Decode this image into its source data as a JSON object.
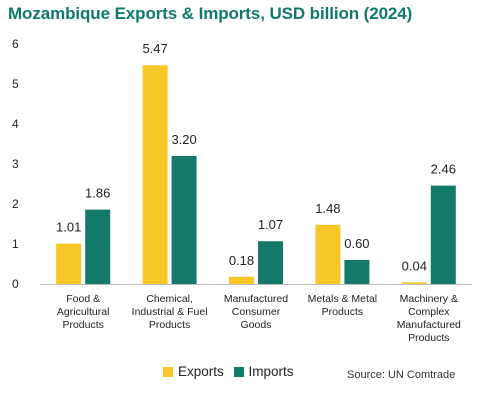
{
  "title": "Mozambique Exports & Imports, USD billion (2024)",
  "source": "Source: UN Comtrade",
  "chart_data": {
    "type": "bar",
    "categories": [
      [
        "Food &",
        "Agricultural",
        "Products"
      ],
      [
        "Chemical,",
        "Industrial & Fuel",
        "Products"
      ],
      [
        "Manufactured",
        "Consumer",
        "Goods"
      ],
      [
        "Metals & Metal",
        "Products"
      ],
      [
        "Machinery &",
        "Complex",
        "Manufactured",
        "Products"
      ]
    ],
    "series": [
      {
        "name": "Exports",
        "color": "#f7c728",
        "values": [
          1.01,
          5.47,
          0.18,
          1.48,
          0.04
        ]
      },
      {
        "name": "Imports",
        "color": "#137a6a",
        "values": [
          1.86,
          3.2,
          1.07,
          0.6,
          2.46
        ]
      }
    ],
    "ylim": [
      0,
      6
    ],
    "yticks": [
      0,
      1,
      2,
      3,
      4,
      5,
      6
    ],
    "value_labels": [
      [
        "1.01",
        "5.47",
        "0.18",
        "1.48",
        "0.04"
      ],
      [
        "1.86",
        "3.20",
        "1.07",
        "0.60",
        "2.46"
      ]
    ],
    "legend_position": "bottom",
    "grid": false
  }
}
